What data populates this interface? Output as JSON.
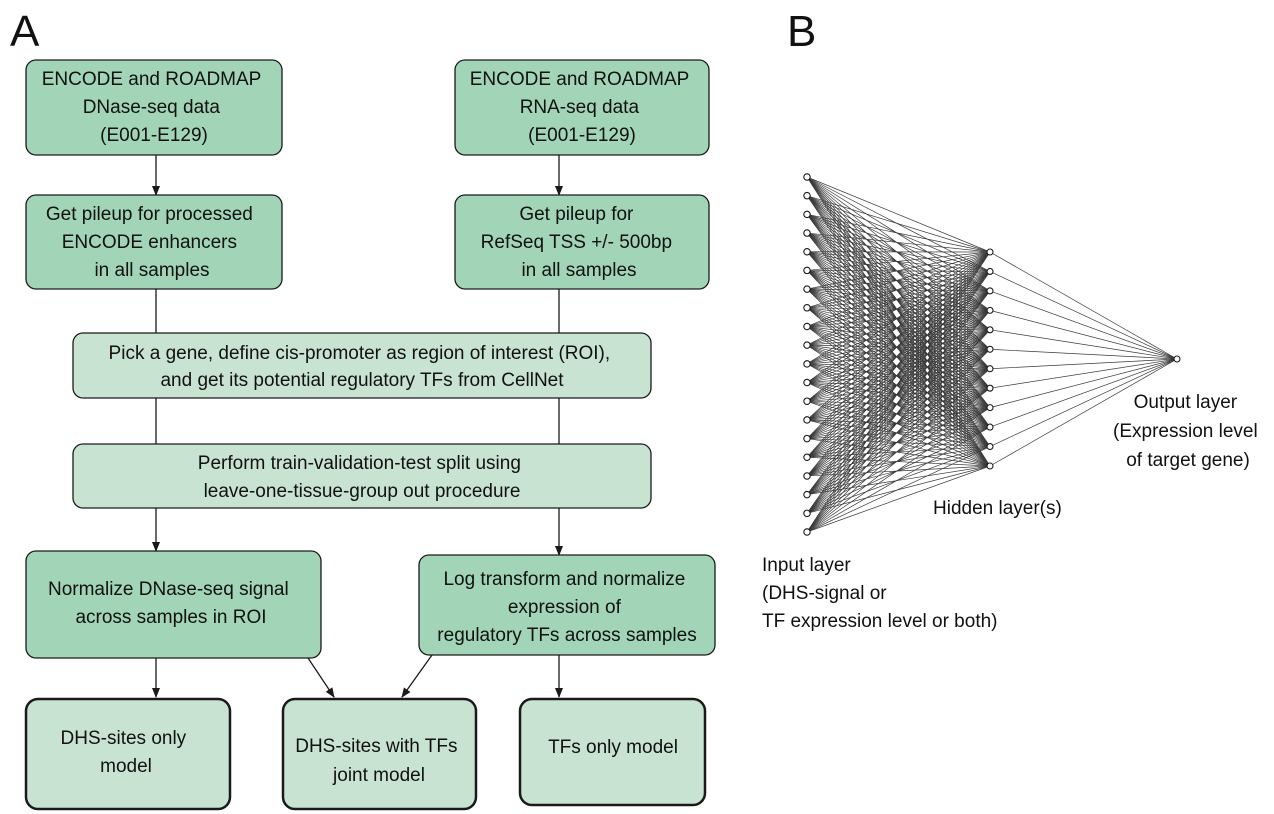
{
  "panels": {
    "a_label": "A",
    "b_label": "B"
  },
  "flowchart": {
    "boxes": [
      {
        "id": "dnase-data",
        "style": "dark",
        "lines": [
          "ENCODE and ROADMAP",
          "DNase-seq data",
          "(E001-E129)"
        ]
      },
      {
        "id": "rna-data",
        "style": "dark",
        "lines": [
          "ENCODE and ROADMAP",
          "RNA-seq data",
          "(E001-E129)"
        ]
      },
      {
        "id": "pileup-enhancers",
        "style": "dark",
        "lines": [
          "Get pileup for processed",
          "ENCODE enhancers",
          "in all samples"
        ]
      },
      {
        "id": "pileup-tss",
        "style": "dark",
        "lines": [
          "Get pileup for",
          "RefSeq TSS +/- 500bp",
          "in all samples"
        ]
      },
      {
        "id": "pick-gene",
        "style": "light",
        "lines": [
          "Pick a gene, define cis-promoter as region of interest (ROI),",
          "and get its potential regulatory TFs from CellNet"
        ]
      },
      {
        "id": "split",
        "style": "light",
        "lines": [
          "Perform train-validation-test split using",
          "leave-one-tissue-group out procedure"
        ]
      },
      {
        "id": "normalize-dnase",
        "style": "dark",
        "lines": [
          "Normalize DNase-seq signal",
          "across samples in ROI"
        ]
      },
      {
        "id": "log-transform",
        "style": "dark",
        "lines": [
          "Log transform and normalize",
          "expression of",
          "regulatory TFs across samples"
        ]
      },
      {
        "id": "dhs-only-model",
        "style": "model",
        "lines": [
          "DHS-sites only",
          "model"
        ]
      },
      {
        "id": "joint-model",
        "style": "model",
        "lines": [
          "DHS-sites with TFs",
          "joint model"
        ]
      },
      {
        "id": "tfs-only-model",
        "style": "model",
        "lines": [
          "TFs only model"
        ]
      }
    ]
  },
  "network": {
    "input_nodes": 20,
    "hidden_nodes": 12,
    "output_nodes": 1,
    "input_label": [
      "Input layer",
      "(DHS-signal or",
      "TF expression level or both)"
    ],
    "hidden_label": [
      "Hidden layer(s)"
    ],
    "output_label": [
      "Output layer",
      "(Expression level",
      "of target gene)"
    ]
  }
}
